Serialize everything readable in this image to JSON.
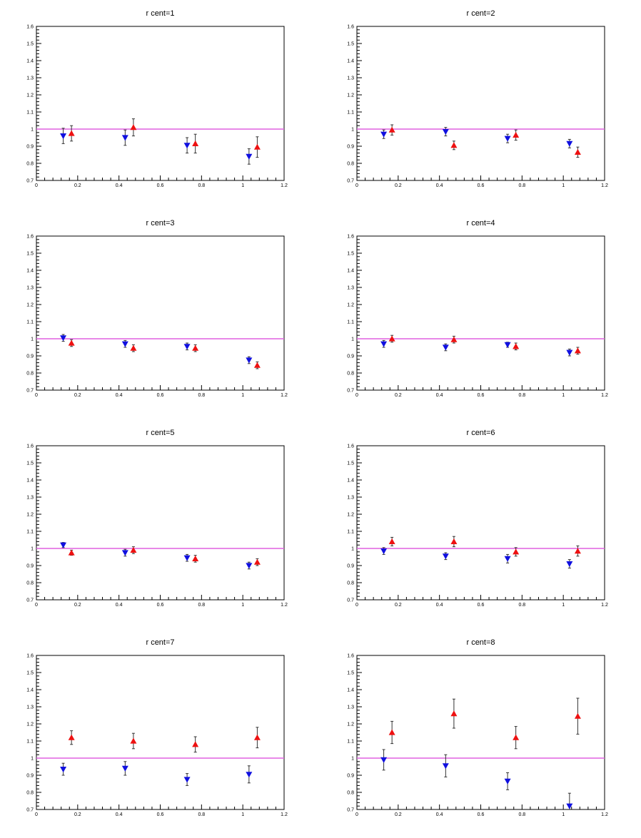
{
  "chart_data": [
    {
      "type": "scatter",
      "title": "r cent=1",
      "xlim": [
        0,
        1.2
      ],
      "ylim": [
        0.7,
        1.6
      ],
      "xticks": [
        "0",
        "0.2",
        "0.4",
        "0.6",
        "0.8",
        "1",
        "1.2"
      ],
      "yticks": [
        "0.7",
        "0.8",
        "0.9",
        "1",
        "1.1",
        "1.2",
        "1.3",
        "1.4",
        "1.5",
        "1.6"
      ],
      "reference_line": 1.0,
      "grid": false,
      "series": [
        {
          "marker": "triangle-down",
          "color": "#1010e0",
          "x": [
            0.13,
            0.43,
            0.73,
            1.03
          ],
          "y": [
            0.96,
            0.95,
            0.905,
            0.84
          ],
          "err": [
            0.045,
            0.045,
            0.045,
            0.045
          ]
        },
        {
          "marker": "triangle-up",
          "color": "#ee1111",
          "x": [
            0.17,
            0.47,
            0.77,
            1.07
          ],
          "y": [
            0.975,
            1.01,
            0.915,
            0.895
          ],
          "err": [
            0.045,
            0.05,
            0.055,
            0.06
          ]
        }
      ]
    },
    {
      "type": "scatter",
      "title": "r cent=2",
      "xlim": [
        0,
        1.2
      ],
      "ylim": [
        0.7,
        1.6
      ],
      "xticks": [
        "0",
        "0.2",
        "0.4",
        "0.6",
        "0.8",
        "1",
        "1.2"
      ],
      "yticks": [
        "0.7",
        "0.8",
        "0.9",
        "1",
        "1.1",
        "1.2",
        "1.3",
        "1.4",
        "1.5",
        "1.6"
      ],
      "reference_line": 1.0,
      "grid": false,
      "series": [
        {
          "marker": "triangle-down",
          "color": "#1010e0",
          "x": [
            0.13,
            0.43,
            0.73,
            1.03
          ],
          "y": [
            0.97,
            0.985,
            0.945,
            0.915
          ],
          "err": [
            0.025,
            0.025,
            0.025,
            0.025
          ]
        },
        {
          "marker": "triangle-up",
          "color": "#ee1111",
          "x": [
            0.17,
            0.47,
            0.77,
            1.07
          ],
          "y": [
            0.995,
            0.905,
            0.965,
            0.865
          ],
          "err": [
            0.03,
            0.025,
            0.03,
            0.03
          ]
        }
      ]
    },
    {
      "type": "scatter",
      "title": "r cent=3",
      "xlim": [
        0,
        1.2
      ],
      "ylim": [
        0.7,
        1.6
      ],
      "xticks": [
        "0",
        "0.2",
        "0.4",
        "0.6",
        "0.8",
        "1",
        "1.2"
      ],
      "yticks": [
        "0.7",
        "0.8",
        "0.9",
        "1",
        "1.1",
        "1.2",
        "1.3",
        "1.4",
        "1.5",
        "1.6"
      ],
      "reference_line": 1.0,
      "grid": false,
      "series": [
        {
          "marker": "triangle-down",
          "color": "#1010e0",
          "x": [
            0.13,
            0.43,
            0.73,
            1.03
          ],
          "y": [
            1.005,
            0.97,
            0.955,
            0.875
          ],
          "err": [
            0.02,
            0.02,
            0.02,
            0.02
          ]
        },
        {
          "marker": "triangle-up",
          "color": "#ee1111",
          "x": [
            0.17,
            0.47,
            0.77,
            1.07
          ],
          "y": [
            0.975,
            0.945,
            0.945,
            0.845
          ],
          "err": [
            0.02,
            0.02,
            0.02,
            0.02
          ]
        }
      ]
    },
    {
      "type": "scatter",
      "title": "r cent=4",
      "xlim": [
        0,
        1.2
      ],
      "ylim": [
        0.7,
        1.6
      ],
      "xticks": [
        "0",
        "0.2",
        "0.4",
        "0.6",
        "0.8",
        "1",
        "1.2"
      ],
      "yticks": [
        "0.7",
        "0.8",
        "0.9",
        "1",
        "1.1",
        "1.2",
        "1.3",
        "1.4",
        "1.5",
        "1.6"
      ],
      "reference_line": 1.0,
      "grid": false,
      "series": [
        {
          "marker": "triangle-down",
          "color": "#1010e0",
          "x": [
            0.13,
            0.43,
            0.73,
            1.03
          ],
          "y": [
            0.97,
            0.95,
            0.965,
            0.92
          ],
          "err": [
            0.02,
            0.02,
            0.015,
            0.02
          ]
        },
        {
          "marker": "triangle-up",
          "color": "#ee1111",
          "x": [
            0.17,
            0.47,
            0.77,
            1.07
          ],
          "y": [
            1.0,
            0.995,
            0.955,
            0.93
          ],
          "err": [
            0.02,
            0.02,
            0.02,
            0.02
          ]
        }
      ]
    },
    {
      "type": "scatter",
      "title": "r cent=5",
      "xlim": [
        0,
        1.2
      ],
      "ylim": [
        0.7,
        1.6
      ],
      "xticks": [
        "0",
        "0.2",
        "0.4",
        "0.6",
        "0.8",
        "1",
        "1.2"
      ],
      "yticks": [
        "0.7",
        "0.8",
        "0.9",
        "1",
        "1.1",
        "1.2",
        "1.3",
        "1.4",
        "1.5",
        "1.6"
      ],
      "reference_line": 1.0,
      "grid": false,
      "series": [
        {
          "marker": "triangle-down",
          "color": "#1010e0",
          "x": [
            0.13,
            0.43,
            0.73,
            1.03
          ],
          "y": [
            1.02,
            0.975,
            0.945,
            0.9
          ],
          "err": [
            0.015,
            0.02,
            0.02,
            0.02
          ]
        },
        {
          "marker": "triangle-up",
          "color": "#ee1111",
          "x": [
            0.17,
            0.47,
            0.77,
            1.07
          ],
          "y": [
            0.975,
            0.99,
            0.94,
            0.92
          ],
          "err": [
            0.015,
            0.02,
            0.02,
            0.02
          ]
        }
      ]
    },
    {
      "type": "scatter",
      "title": "r cent=6",
      "xlim": [
        0,
        1.2
      ],
      "ylim": [
        0.7,
        1.6
      ],
      "xticks": [
        "0",
        "0.2",
        "0.4",
        "0.6",
        "0.8",
        "1",
        "1.2"
      ],
      "yticks": [
        "0.7",
        "0.8",
        "0.9",
        "1",
        "1.1",
        "1.2",
        "1.3",
        "1.4",
        "1.5",
        "1.6"
      ],
      "reference_line": 1.0,
      "grid": false,
      "series": [
        {
          "marker": "triangle-down",
          "color": "#1010e0",
          "x": [
            0.13,
            0.43,
            0.73,
            1.03
          ],
          "y": [
            0.985,
            0.955,
            0.94,
            0.91
          ],
          "err": [
            0.02,
            0.02,
            0.025,
            0.025
          ]
        },
        {
          "marker": "triangle-up",
          "color": "#ee1111",
          "x": [
            0.17,
            0.47,
            0.77,
            1.07
          ],
          "y": [
            1.04,
            1.04,
            0.98,
            0.985
          ],
          "err": [
            0.025,
            0.03,
            0.025,
            0.03
          ]
        }
      ]
    },
    {
      "type": "scatter",
      "title": "r cent=7",
      "xlim": [
        0,
        1.2
      ],
      "ylim": [
        0.7,
        1.6
      ],
      "xticks": [
        "0",
        "0.2",
        "0.4",
        "0.6",
        "0.8",
        "1",
        "1.2"
      ],
      "yticks": [
        "0.7",
        "0.8",
        "0.9",
        "1",
        "1.1",
        "1.2",
        "1.3",
        "1.4",
        "1.5",
        "1.6"
      ],
      "reference_line": 1.0,
      "grid": false,
      "series": [
        {
          "marker": "triangle-down",
          "color": "#1010e0",
          "x": [
            0.13,
            0.43,
            0.73,
            1.03
          ],
          "y": [
            0.935,
            0.94,
            0.875,
            0.905
          ],
          "err": [
            0.035,
            0.04,
            0.035,
            0.05
          ]
        },
        {
          "marker": "triangle-up",
          "color": "#ee1111",
          "x": [
            0.17,
            0.47,
            0.77,
            1.07
          ],
          "y": [
            1.12,
            1.1,
            1.08,
            1.12
          ],
          "err": [
            0.04,
            0.045,
            0.045,
            0.06
          ]
        }
      ]
    },
    {
      "type": "scatter",
      "title": "r cent=8",
      "xlim": [
        0,
        1.2
      ],
      "ylim": [
        0.7,
        1.6
      ],
      "xticks": [
        "0",
        "0.2",
        "0.4",
        "0.6",
        "0.8",
        "1",
        "1.2"
      ],
      "yticks": [
        "0.7",
        "0.8",
        "0.9",
        "1",
        "1.1",
        "1.2",
        "1.3",
        "1.4",
        "1.5",
        "1.6"
      ],
      "reference_line": 1.0,
      "grid": false,
      "series": [
        {
          "marker": "triangle-down",
          "color": "#1010e0",
          "x": [
            0.13,
            0.43,
            0.73,
            1.03
          ],
          "y": [
            0.99,
            0.955,
            0.865,
            0.72
          ],
          "err": [
            0.06,
            0.065,
            0.05,
            0.075
          ]
        },
        {
          "marker": "triangle-up",
          "color": "#ee1111",
          "x": [
            0.17,
            0.47,
            0.77,
            1.07
          ],
          "y": [
            1.15,
            1.26,
            1.12,
            1.245
          ],
          "err": [
            0.065,
            0.085,
            0.065,
            0.105
          ]
        }
      ]
    }
  ]
}
